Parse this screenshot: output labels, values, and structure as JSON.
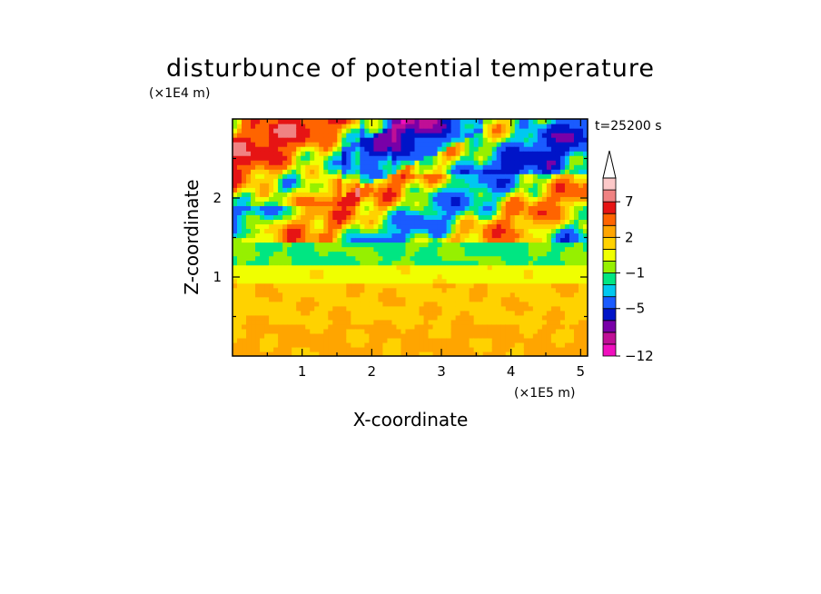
{
  "chart_data": {
    "type": "heatmap",
    "title": "disturbunce of potential temperature",
    "xlabel": "X-coordinate",
    "ylabel": "Z-coordinate",
    "x_unit": "(×1E5 m)",
    "y_unit": "(×1E4 m)",
    "time_label": "t=25200 s",
    "xlim": [
      0,
      5.1
    ],
    "ylim": [
      0,
      3.0
    ],
    "x_ticks": [
      1,
      2,
      3,
      4,
      5
    ],
    "y_ticks": [
      1,
      2
    ],
    "colorbar": {
      "levels": [
        -12,
        -11,
        -9,
        -7,
        -5,
        -3,
        -2,
        -1,
        0,
        1,
        2,
        3,
        5,
        7,
        9,
        11
      ],
      "tick_values": [
        -12,
        -5,
        -1,
        2,
        7
      ],
      "tick_labels": [
        "−12",
        "−5",
        "−1",
        "2",
        "7"
      ],
      "colors": [
        "#f00fbe",
        "#c00f96",
        "#7800a8",
        "#0014c8",
        "#1a5bff",
        "#00c8f0",
        "#00e682",
        "#96f000",
        "#f0ff00",
        "#ffd200",
        "#ffa500",
        "#ff6400",
        "#e61414",
        "#f08282",
        "#fcc8c8"
      ],
      "extend_max": true
    }
  }
}
